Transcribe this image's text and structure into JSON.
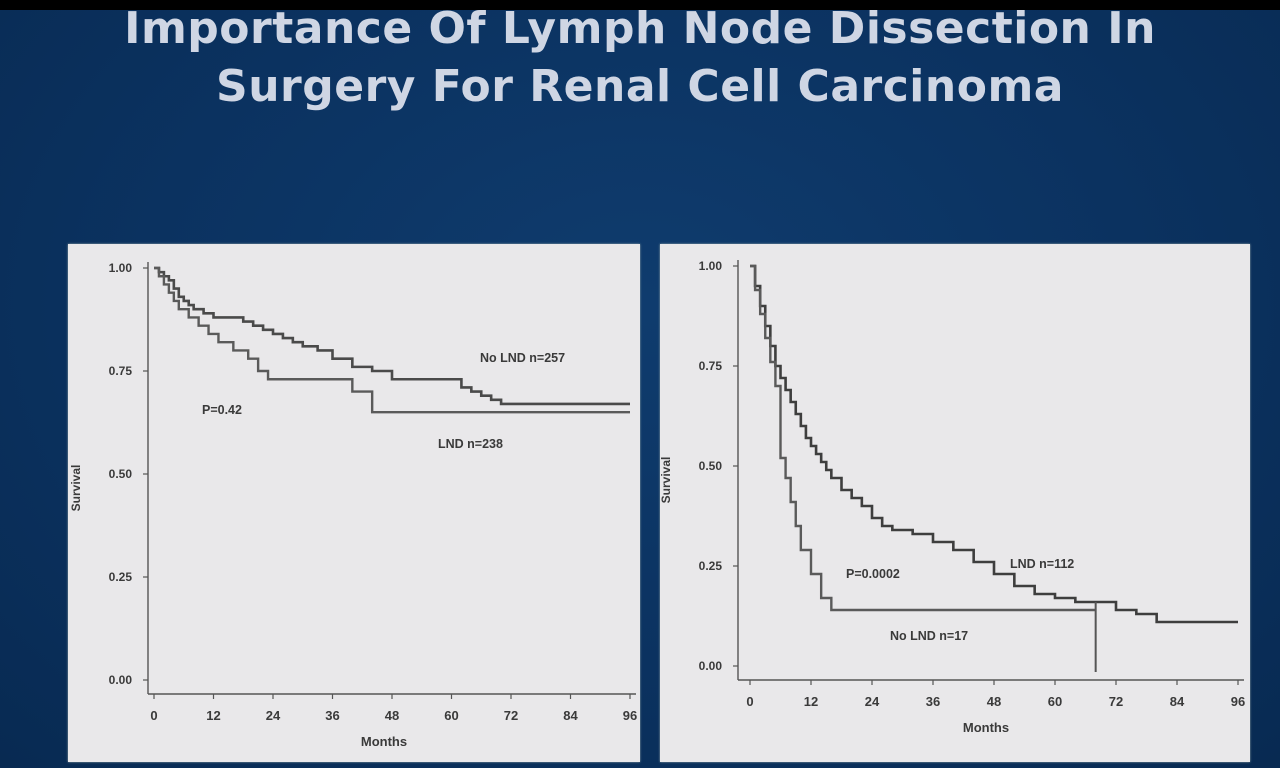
{
  "slide": {
    "title_line1": "Importance Of Lymph Node Dissection In",
    "title_line2": "Surgery For Renal Cell Carcinoma"
  },
  "chart_data": [
    {
      "type": "line",
      "step": true,
      "xlabel": "Months",
      "ylabel": "Survival",
      "xlim": [
        0,
        96
      ],
      "ylim": [
        0,
        1
      ],
      "xticks": [
        "0",
        "12",
        "24",
        "36",
        "48",
        "60",
        "72",
        "84",
        "96"
      ],
      "yticks": [
        "0.00",
        "0.25",
        "0.50",
        "0.75",
        "1.00"
      ],
      "grid": false,
      "series": [
        {
          "name": "No LND n=257",
          "x": [
            0,
            1,
            2,
            3,
            4,
            5,
            6,
            7,
            8,
            10,
            12,
            14,
            18,
            20,
            22,
            24,
            26,
            28,
            30,
            33,
            36,
            40,
            44,
            48,
            56,
            62,
            64,
            66,
            68,
            70,
            96
          ],
          "y": [
            1.0,
            0.99,
            0.98,
            0.97,
            0.95,
            0.93,
            0.92,
            0.91,
            0.9,
            0.89,
            0.88,
            0.88,
            0.87,
            0.86,
            0.85,
            0.84,
            0.83,
            0.82,
            0.81,
            0.8,
            0.78,
            0.76,
            0.75,
            0.73,
            0.73,
            0.71,
            0.7,
            0.69,
            0.68,
            0.67,
            0.67
          ]
        },
        {
          "name": "LND n=238",
          "x": [
            0,
            1,
            2,
            3,
            4,
            5,
            7,
            9,
            11,
            13,
            16,
            19,
            21,
            23,
            36,
            40,
            44,
            96
          ],
          "y": [
            1.0,
            0.98,
            0.96,
            0.94,
            0.92,
            0.9,
            0.88,
            0.86,
            0.84,
            0.82,
            0.8,
            0.78,
            0.75,
            0.73,
            0.73,
            0.7,
            0.65,
            0.65
          ]
        }
      ],
      "annotations": [
        "P=0.42"
      ]
    },
    {
      "type": "line",
      "step": true,
      "xlabel": "Months",
      "ylabel": "Survival",
      "xlim": [
        0,
        96
      ],
      "ylim": [
        0,
        1
      ],
      "xticks": [
        "0",
        "12",
        "24",
        "36",
        "48",
        "60",
        "72",
        "84",
        "96"
      ],
      "yticks": [
        "0.00",
        "0.25",
        "0.50",
        "0.75",
        "1.00"
      ],
      "grid": false,
      "series": [
        {
          "name": "LND n=112",
          "x": [
            0,
            1,
            2,
            3,
            4,
            5,
            6,
            7,
            8,
            9,
            10,
            11,
            12,
            13,
            14,
            15,
            16,
            18,
            20,
            22,
            24,
            26,
            28,
            32,
            36,
            40,
            44,
            48,
            52,
            56,
            60,
            64,
            68,
            70,
            72,
            76,
            80,
            96
          ],
          "y": [
            1.0,
            0.95,
            0.9,
            0.85,
            0.8,
            0.75,
            0.72,
            0.69,
            0.66,
            0.63,
            0.6,
            0.57,
            0.55,
            0.53,
            0.51,
            0.49,
            0.47,
            0.44,
            0.42,
            0.4,
            0.37,
            0.35,
            0.34,
            0.33,
            0.31,
            0.29,
            0.26,
            0.23,
            0.2,
            0.18,
            0.17,
            0.16,
            0.16,
            0.16,
            0.14,
            0.13,
            0.11,
            0.11
          ]
        },
        {
          "name": "No LND n=17",
          "x": [
            0,
            1,
            2,
            3,
            4,
            5,
            6,
            7,
            8,
            9,
            10,
            12,
            14,
            16,
            68
          ],
          "y": [
            1.0,
            0.94,
            0.88,
            0.82,
            0.76,
            0.7,
            0.52,
            0.47,
            0.41,
            0.35,
            0.29,
            0.23,
            0.17,
            0.14,
            0.14
          ]
        }
      ],
      "annotations": [
        "P=0.0002"
      ]
    }
  ]
}
